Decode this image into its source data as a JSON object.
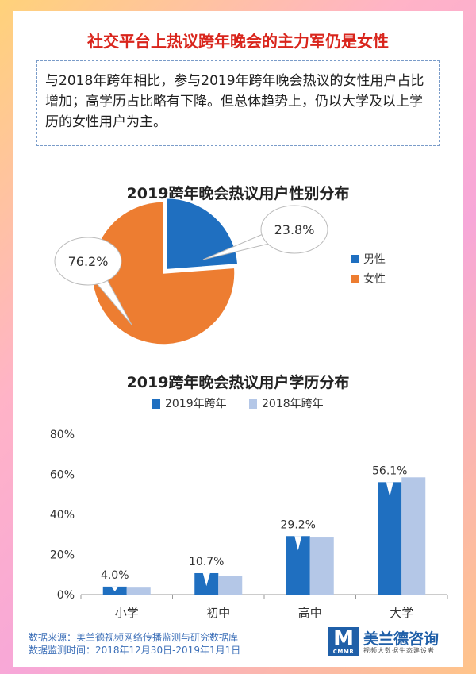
{
  "headline": "社交平台上热议跨年晚会的主力军仍是女性",
  "summary": "与2018年跨年相比，参与2019年跨年晚会热议的女性用户占比增加；高学历占比略有下降。但总体趋势上，仍以大学及以上学历的女性用户为主。",
  "colors": {
    "headline": "#d9251c",
    "male": "#1f6fc0",
    "female": "#ed7d31",
    "s2019": "#1f6fc0",
    "s2018": "#b4c7e7"
  },
  "chart_data": [
    {
      "type": "pie",
      "title": "2019跨年晚会热议用户性别分布",
      "labels": [
        "男性",
        "女性"
      ],
      "values": [
        23.8,
        76.2
      ],
      "value_labels": [
        "23.8%",
        "76.2%"
      ],
      "legend": "right"
    },
    {
      "type": "bar",
      "title": "2019跨年晚会热议用户学历分布",
      "categories": [
        "小学",
        "初中",
        "高中",
        "大学"
      ],
      "series": [
        {
          "name": "2019年跨年",
          "values": [
            4.0,
            10.7,
            29.2,
            56.1
          ]
        },
        {
          "name": "2018年跨年",
          "values": [
            3.5,
            9.5,
            28.5,
            58.5
          ]
        }
      ],
      "data_labels": [
        "4.0%",
        "10.7%",
        "29.2%",
        "56.1%"
      ],
      "y_ticks": [
        "0%",
        "20%",
        "40%",
        "60%",
        "80%"
      ],
      "ylim": [
        0,
        80
      ],
      "legend": "top",
      "grid": false
    }
  ],
  "footer": {
    "source": "数据来源：美兰德视频网络传播监测与研究数据库",
    "period": "数据监测时间：2018年12月30日-2019年1月1日"
  },
  "logo": {
    "mark": "M",
    "mark_sub": "CMMR",
    "name": "美兰德咨询",
    "tagline": "视频大数据生态建设者"
  }
}
